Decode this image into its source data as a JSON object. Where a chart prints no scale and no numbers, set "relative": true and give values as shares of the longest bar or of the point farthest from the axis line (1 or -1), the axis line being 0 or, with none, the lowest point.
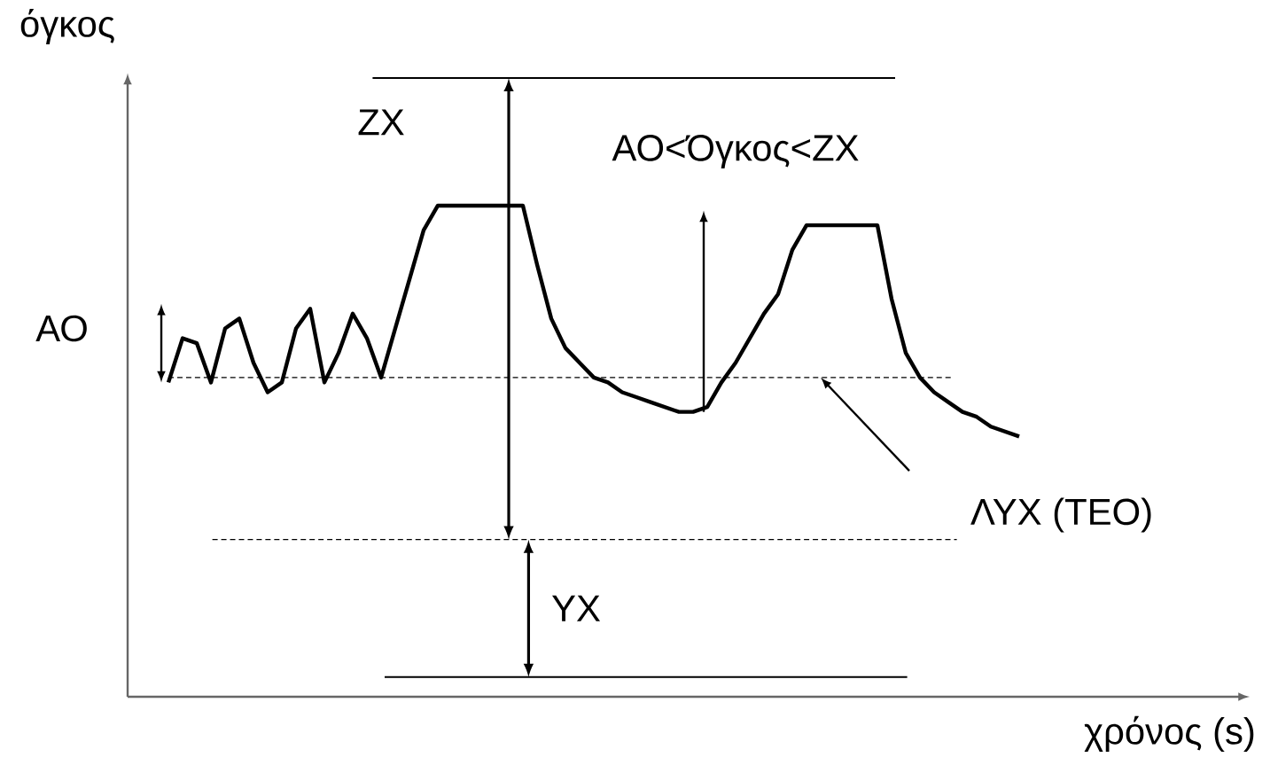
{
  "chart_data": {
    "type": "line",
    "relative": true,
    "xlabel": "χρόνος (s)",
    "ylabel": "όγκος",
    "categories": [
      null,
      null,
      null,
      null,
      null,
      null,
      null,
      null,
      null,
      null,
      null,
      null,
      null,
      null,
      null,
      null,
      null,
      null,
      null,
      null,
      null,
      null,
      null,
      null,
      null,
      null,
      null,
      null,
      null,
      null,
      null,
      null,
      null,
      null,
      null,
      null,
      null,
      null,
      null,
      null,
      null,
      null,
      null,
      null,
      null,
      null,
      null,
      null,
      null,
      null,
      null,
      null,
      null,
      null,
      null,
      null,
      null,
      null,
      null,
      null,
      null
    ],
    "series": [
      {
        "color": "#000000",
        "line_style": "solid",
        "values": [
          0.64,
          0.73,
          0.72,
          0.64,
          0.75,
          0.77,
          0.68,
          0.62,
          0.64,
          0.75,
          0.79,
          0.64,
          0.7,
          0.78,
          0.73,
          0.65,
          0.75,
          0.85,
          0.95,
          1,
          1,
          1,
          1,
          1,
          1,
          1,
          0.88,
          0.77,
          0.71,
          0.68,
          0.65,
          0.64,
          0.62,
          0.61,
          0.6,
          0.59,
          0.58,
          0.58,
          0.59,
          0.64,
          0.68,
          0.73,
          0.78,
          0.82,
          0.91,
          0.96,
          0.96,
          0.96,
          0.96,
          0.96,
          0.96,
          0.81,
          0.7,
          0.65,
          0.62,
          0.6,
          0.58,
          0.57,
          0.55,
          0.54,
          0.53
        ]
      }
    ],
    "ref_lines": [
      {
        "axis": "y",
        "value": 1.26,
        "color": "#000000",
        "line_style": "solid"
      },
      {
        "axis": "y",
        "value": 0.65,
        "color": "#000000",
        "line_style": "dashed"
      },
      {
        "axis": "y",
        "value": 0.32,
        "color": "#000000",
        "line_style": "dashed"
      },
      {
        "axis": "y",
        "value": 0.04,
        "color": "#000000",
        "line_style": "solid"
      }
    ],
    "annotations": [
      "ΖΧ",
      "ΑΟ<Όγκος<ΖΧ",
      "ΑΟ",
      "ΛΥΧ (ΤΕΟ)",
      "ΥΧ"
    ]
  }
}
